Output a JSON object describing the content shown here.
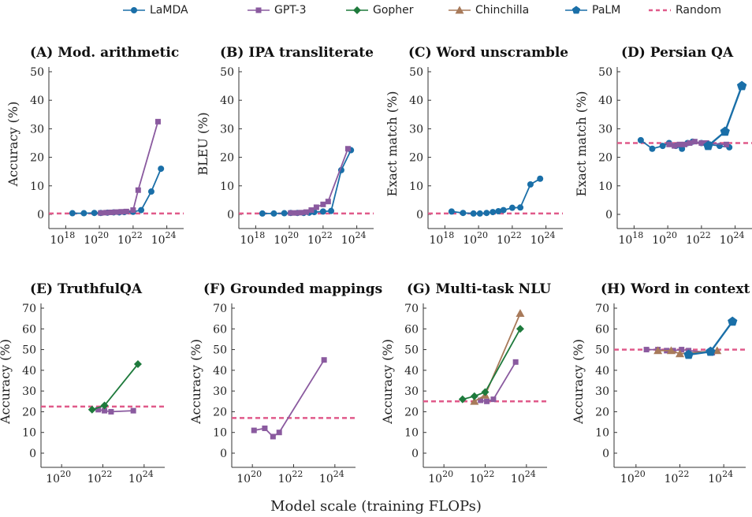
{
  "legend": [
    {
      "key": "lamda",
      "label": "LaMDA"
    },
    {
      "key": "gpt3",
      "label": "GPT-3"
    },
    {
      "key": "gopher",
      "label": "Gopher"
    },
    {
      "key": "chinchilla",
      "label": "Chinchilla"
    },
    {
      "key": "palm",
      "label": "PaLM"
    },
    {
      "key": "random",
      "label": "Random"
    }
  ],
  "styles": {
    "lamda": {
      "color": "#1a6fa8",
      "marker": "circle"
    },
    "gpt3": {
      "color": "#8a5a9f",
      "marker": "square"
    },
    "gopher": {
      "color": "#1e7a3c",
      "marker": "diamond"
    },
    "chinchilla": {
      "color": "#a87a5a",
      "marker": "triangle"
    },
    "palm": {
      "color": "#1a6fa8",
      "marker": "pentagon"
    },
    "random": {
      "color": "#e05a8a",
      "marker": "dashed"
    }
  },
  "shared_xlabel": "Model scale (training FLOPs)",
  "chart_data": [
    {
      "id": "A",
      "title": "(A) Mod. arithmetic",
      "type": "line",
      "xscale": "log10",
      "ylabel": "Accuracy (%)",
      "xlim": [
        1e+17,
        1e+25
      ],
      "xticks": [
        18,
        20,
        22,
        24
      ],
      "ylim": [
        0,
        50
      ],
      "yticks": [
        0,
        10,
        20,
        30,
        40,
        50
      ],
      "random": 0.3,
      "series": [
        {
          "name": "LaMDA",
          "key": "lamda",
          "x": [
            2.5e+18,
            1.2e+19,
            5e+19,
            1.2e+20,
            3e+20,
            7e+20,
            1.5e+21,
            3e+21,
            1e+22,
            3e+22,
            1.2e+23,
            4.5e+23
          ],
          "y": [
            0.4,
            0.4,
            0.5,
            0.5,
            0.6,
            0.7,
            0.7,
            0.8,
            0.9,
            1.5,
            8,
            16
          ]
        },
        {
          "name": "GPT-3",
          "key": "gpt3",
          "x": [
            1.2e+20,
            2.5e+20,
            5e+20,
            1e+21,
            2e+21,
            4e+21,
            1e+22,
            2e+22,
            3e+23
          ],
          "y": [
            0.5,
            0.6,
            0.7,
            0.8,
            0.9,
            1,
            1.5,
            8.5,
            32.5
          ]
        }
      ]
    },
    {
      "id": "B",
      "title": "(B) IPA transliterate",
      "type": "line",
      "xscale": "log10",
      "ylabel": "BLEU (%)",
      "xlim": [
        1e+17,
        1e+25
      ],
      "xticks": [
        18,
        20,
        22,
        24
      ],
      "ylim": [
        0,
        50
      ],
      "yticks": [
        0,
        10,
        20,
        30,
        40,
        50
      ],
      "random": 0.3,
      "series": [
        {
          "name": "LaMDA",
          "key": "lamda",
          "x": [
            2.5e+18,
            1.2e+19,
            5e+19,
            1.2e+20,
            3e+20,
            7e+20,
            1.5e+21,
            3e+21,
            1e+22,
            3e+22,
            1.2e+23,
            4.5e+23
          ],
          "y": [
            0.3,
            0.3,
            0.4,
            0.5,
            0.5,
            0.5,
            0.6,
            0.8,
            1,
            1.2,
            15.5,
            22.5
          ]
        },
        {
          "name": "GPT-3",
          "key": "gpt3",
          "x": [
            1.2e+20,
            2.5e+20,
            5e+20,
            1e+21,
            2e+21,
            4e+21,
            1e+22,
            2e+22,
            3e+23
          ],
          "y": [
            0.5,
            0.5,
            0.6,
            0.8,
            1.5,
            2.5,
            3.5,
            4.5,
            23
          ]
        }
      ]
    },
    {
      "id": "C",
      "title": "(C) Word unscramble",
      "type": "line",
      "xscale": "log10",
      "ylabel": "Exact match (%)",
      "xlim": [
        1e+17,
        1e+25
      ],
      "xticks": [
        18,
        20,
        22,
        24
      ],
      "ylim": [
        0,
        50
      ],
      "yticks": [
        0,
        10,
        20,
        30,
        40,
        50
      ],
      "random": 0.3,
      "series": [
        {
          "name": "LaMDA",
          "key": "lamda",
          "x": [
            2.5e+18,
            1.2e+19,
            5e+19,
            1.2e+20,
            3e+20,
            7e+20,
            1.5e+21,
            3e+21,
            1e+22,
            3e+22,
            1.2e+23,
            4.5e+23
          ],
          "y": [
            1,
            0.5,
            0.3,
            0.3,
            0.5,
            0.8,
            1.1,
            1.5,
            2.3,
            2.4,
            10.5,
            12.5
          ]
        }
      ]
    },
    {
      "id": "D",
      "title": "(D) Persian QA",
      "type": "line",
      "xscale": "log10",
      "ylabel": "Exact match (%)",
      "xlim": [
        1e+17,
        1e+25
      ],
      "xticks": [
        18,
        20,
        22,
        24
      ],
      "ylim": [
        0,
        50
      ],
      "yticks": [
        0,
        10,
        20,
        30,
        40,
        50
      ],
      "random": 25,
      "series": [
        {
          "name": "LaMDA",
          "key": "lamda",
          "x": [
            2.5e+18,
            1.2e+19,
            5e+19,
            1.2e+20,
            3e+20,
            7e+20,
            1.5e+21,
            3e+21,
            1e+22,
            3e+22,
            1.2e+23,
            4.5e+23
          ],
          "y": [
            26,
            23,
            24,
            25,
            24,
            23,
            25,
            25.5,
            25,
            24.5,
            24,
            23.5
          ]
        },
        {
          "name": "GPT-3",
          "key": "gpt3",
          "x": [
            1.2e+20,
            2.5e+20,
            5e+20,
            1e+21,
            2e+21,
            4e+21,
            1e+22,
            2e+22,
            3e+23
          ],
          "y": [
            24.5,
            24,
            24.5,
            24.5,
            25,
            25.5,
            25,
            25,
            24.5
          ]
        },
        {
          "name": "PaLM",
          "key": "palm",
          "x": [
            2.5e+22,
            2.5e+23,
            2.5e+24
          ],
          "y": [
            24,
            29,
            45
          ]
        }
      ]
    },
    {
      "id": "E",
      "title": "(E) TruthfulQA",
      "type": "line",
      "xscale": "log10",
      "ylabel": "Accuracy (%)",
      "xlim": [
        1e+19,
        1e+25
      ],
      "xticks": [
        20,
        22,
        24
      ],
      "ylim": [
        0,
        70
      ],
      "yticks": [
        0,
        10,
        20,
        30,
        40,
        50,
        60,
        70
      ],
      "random": 22.5,
      "series": [
        {
          "name": "GPT-3",
          "key": "gpt3",
          "x": [
            6e+21,
            1.2e+22,
            2.5e+22,
            3e+23
          ],
          "y": [
            21,
            20.5,
            20,
            20.5
          ]
        },
        {
          "name": "Gopher",
          "key": "gopher",
          "x": [
            3e+21,
            1.2e+22,
            5e+23
          ],
          "y": [
            21,
            23,
            43
          ]
        }
      ]
    },
    {
      "id": "F",
      "title": "(F) Grounded mappings",
      "type": "line",
      "xscale": "log10",
      "ylabel": "Accuracy (%)",
      "xlim": [
        1e+19,
        1e+25
      ],
      "xticks": [
        20,
        22,
        24
      ],
      "ylim": [
        0,
        70
      ],
      "yticks": [
        0,
        10,
        20,
        30,
        40,
        50,
        60,
        70
      ],
      "random": 17,
      "series": [
        {
          "name": "GPT-3",
          "key": "gpt3",
          "x": [
            1.2e+20,
            4e+20,
            1e+21,
            2e+21,
            3e+23
          ],
          "y": [
            11,
            12,
            8,
            10,
            45
          ]
        }
      ]
    },
    {
      "id": "G",
      "title": "(G) Multi-task NLU",
      "type": "line",
      "xscale": "log10",
      "ylabel": "Accuracy (%)",
      "xlim": [
        1e+19,
        1e+25
      ],
      "xticks": [
        20,
        22,
        24
      ],
      "ylim": [
        0,
        70
      ],
      "yticks": [
        0,
        10,
        20,
        30,
        40,
        50,
        60,
        70
      ],
      "random": 25,
      "series": [
        {
          "name": "GPT-3",
          "key": "gpt3",
          "x": [
            6e+21,
            1.2e+22,
            2.5e+22,
            3e+23
          ],
          "y": [
            25.5,
            25,
            26,
            44
          ]
        },
        {
          "name": "Chinchilla",
          "key": "chinchilla",
          "x": [
            3e+21,
            1e+22,
            5e+23
          ],
          "y": [
            25,
            28,
            67.5
          ]
        },
        {
          "name": "Gopher",
          "key": "gopher",
          "x": [
            8e+20,
            3e+21,
            1e+22,
            5e+23
          ],
          "y": [
            26,
            27.5,
            29.5,
            60
          ]
        }
      ]
    },
    {
      "id": "H",
      "title": "(H) Word in context",
      "type": "line",
      "xscale": "log10",
      "ylabel": "Accuracy (%)",
      "xlim": [
        1e+19,
        1e+25
      ],
      "xticks": [
        20,
        22,
        24
      ],
      "ylim": [
        0,
        70
      ],
      "yticks": [
        0,
        10,
        20,
        30,
        40,
        50,
        60,
        70
      ],
      "random": 50,
      "series": [
        {
          "name": "GPT-3",
          "key": "gpt3",
          "x": [
            3e+20,
            1e+21,
            2.5e+21,
            5e+21,
            1.2e+22,
            2.5e+22,
            3e+23
          ],
          "y": [
            50,
            50,
            49.5,
            49.5,
            50,
            49.5,
            48.5
          ]
        },
        {
          "name": "Chinchilla",
          "key": "chinchilla",
          "x": [
            1e+21,
            4e+21,
            1e+22,
            5e+23
          ],
          "y": [
            49.5,
            49.5,
            48,
            49.5
          ]
        },
        {
          "name": "PaLM",
          "key": "palm",
          "x": [
            2.5e+22,
            2.5e+23,
            2.5e+24
          ],
          "y": [
            47.5,
            49,
            63.5
          ]
        }
      ]
    }
  ]
}
